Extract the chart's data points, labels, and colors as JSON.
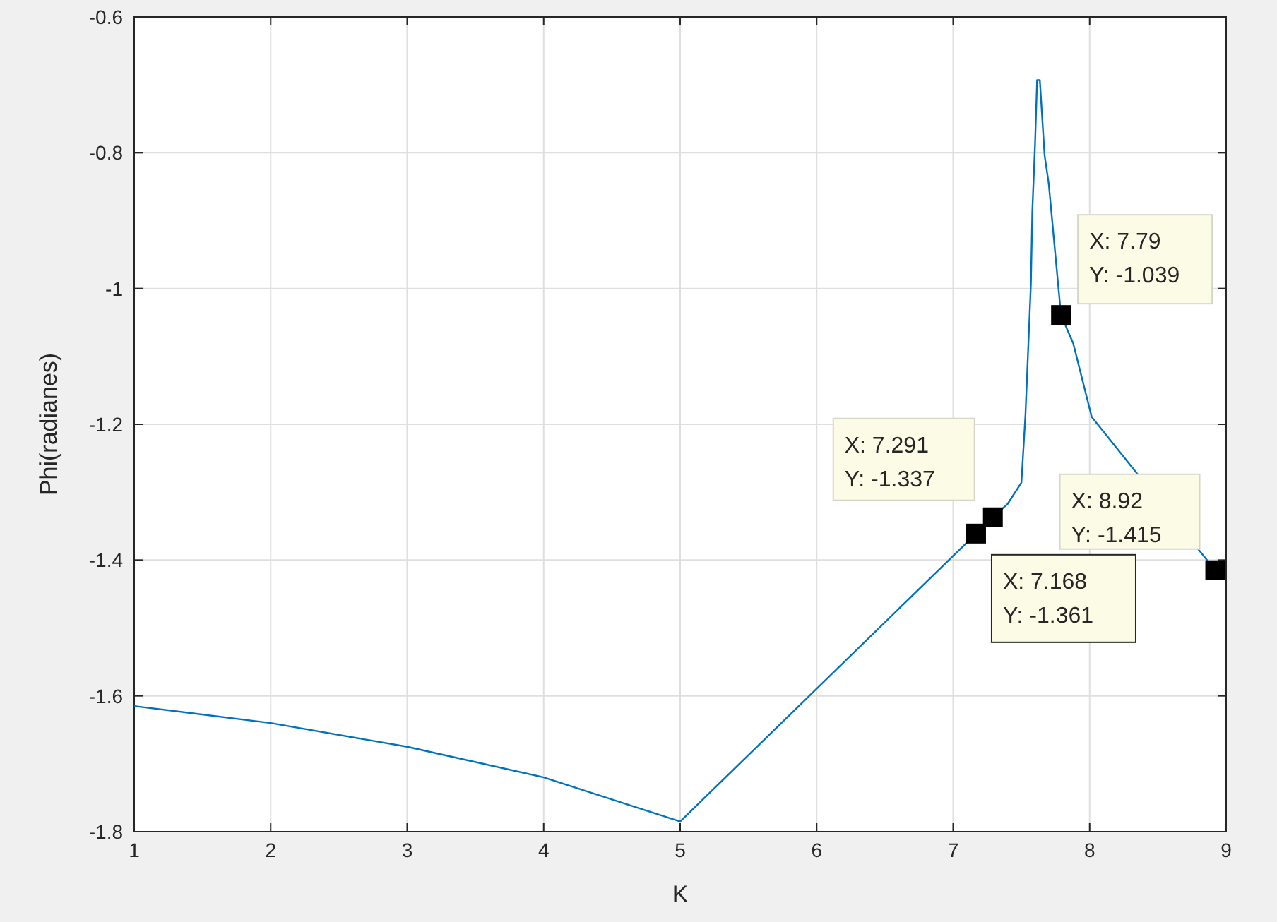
{
  "chart_data": {
    "type": "line",
    "xlabel": "K",
    "ylabel": "Phi(radianes)",
    "xlim": [
      1,
      9
    ],
    "ylim": [
      -1.8,
      -0.6
    ],
    "xticks": [
      1,
      2,
      3,
      4,
      5,
      6,
      7,
      8,
      9
    ],
    "yticks": [
      {
        "value": -1.8,
        "label": "-1.8"
      },
      {
        "value": -1.6,
        "label": "-1.6"
      },
      {
        "value": -1.4,
        "label": "-1.4"
      },
      {
        "value": -1.2,
        "label": "-1.2"
      },
      {
        "value": -1,
        "label": "-1"
      },
      {
        "value": -0.8,
        "label": "-0.8"
      },
      {
        "value": -0.6,
        "label": "-0.6"
      }
    ],
    "grid": true,
    "marker": "none",
    "line_style": "solid",
    "series": [
      {
        "color": "#0072bd",
        "x": [
          1,
          2,
          3,
          4,
          5,
          7.168,
          7.291,
          7.4,
          7.5,
          7.53,
          7.57,
          7.58,
          7.6,
          7.615,
          7.635,
          7.67,
          7.7,
          7.79,
          7.88,
          8.015,
          8.33,
          8.92
        ],
        "values": [
          -1.615,
          -1.64,
          -1.675,
          -1.72,
          -1.785,
          -1.361,
          -1.337,
          -1.317,
          -1.286,
          -1.185,
          -0.991,
          -0.887,
          -0.787,
          -0.693,
          -0.693,
          -0.804,
          -0.845,
          -1.039,
          -1.081,
          -1.189,
          -1.268,
          -1.415
        ]
      }
    ],
    "annotations": [
      {
        "text": "X: 7.79\nY: -1.039",
        "x": 7.79,
        "y": -1.039
      },
      {
        "text": "X: 7.291\nY: -1.337",
        "x": 7.291,
        "y": -1.337
      },
      {
        "text": "X: 8.92\nY: -1.415",
        "x": 8.92,
        "y": -1.415
      },
      {
        "text": "X: 7.168\nY: -1.361",
        "x": 7.168,
        "y": -1.361
      }
    ]
  }
}
